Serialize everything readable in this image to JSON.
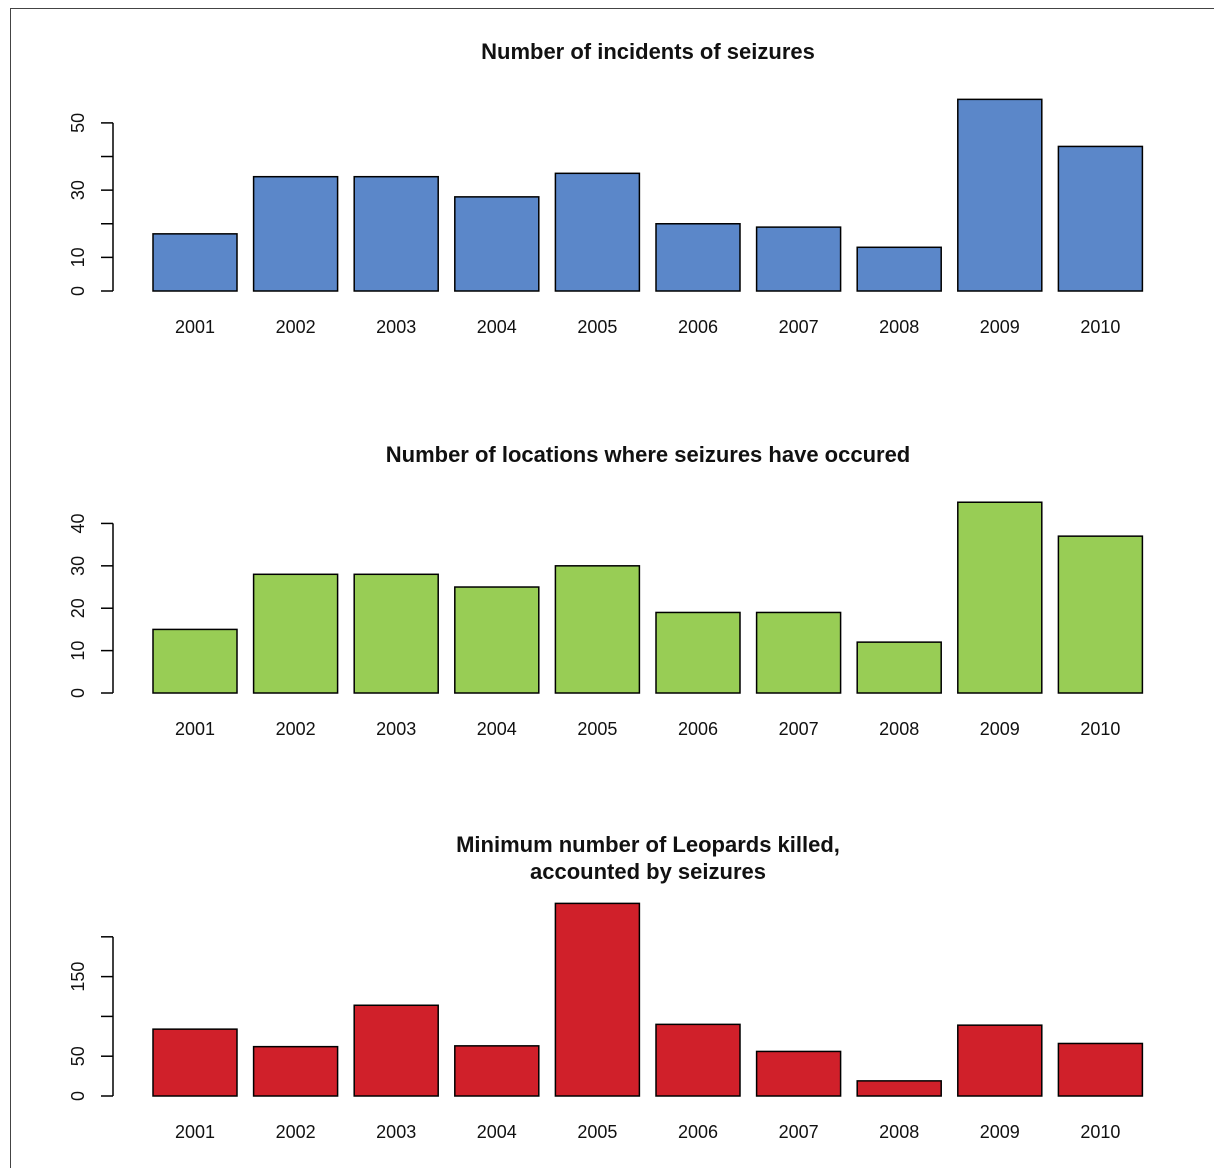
{
  "chart_data": [
    {
      "type": "bar",
      "title": "Number of incidents of seizures",
      "categories": [
        "2001",
        "2002",
        "2003",
        "2004",
        "2005",
        "2006",
        "2007",
        "2008",
        "2009",
        "2010"
      ],
      "values": [
        17,
        34,
        34,
        28,
        35,
        20,
        19,
        13,
        57,
        43
      ],
      "color": "#5b87c9",
      "ylim": [
        0,
        58
      ],
      "yticks": [
        0,
        10,
        30,
        50
      ],
      "minor_yticks": [
        20,
        40
      ]
    },
    {
      "type": "bar",
      "title": "Number of locations where seizures have occured",
      "categories": [
        "2001",
        "2002",
        "2003",
        "2004",
        "2005",
        "2006",
        "2007",
        "2008",
        "2009",
        "2010"
      ],
      "values": [
        15,
        28,
        28,
        25,
        30,
        19,
        19,
        12,
        45,
        37
      ],
      "color": "#98cd55",
      "ylim": [
        0,
        46
      ],
      "yticks": [
        0,
        10,
        20,
        30,
        40
      ]
    },
    {
      "type": "bar",
      "title": "Minimum number of Leopards killed,\naccounted by seizures",
      "categories": [
        "2001",
        "2002",
        "2003",
        "2004",
        "2005",
        "2006",
        "2007",
        "2008",
        "2009",
        "2010"
      ],
      "values": [
        84,
        62,
        114,
        63,
        242,
        90,
        56,
        19,
        89,
        66
      ],
      "color": "#d0202a",
      "ylim": [
        0,
        245
      ],
      "yticks": [
        0,
        50,
        150
      ],
      "minor_yticks": [
        100,
        200
      ]
    }
  ]
}
